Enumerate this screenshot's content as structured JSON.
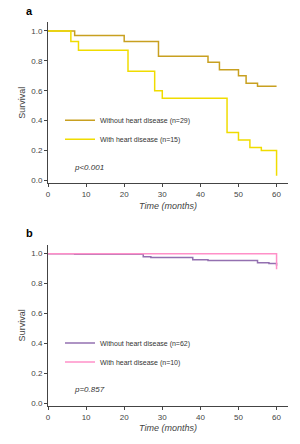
{
  "chart_data": [
    {
      "type": "step",
      "title": "a",
      "series": [
        {
          "name": "Without heart disease (n=29)",
          "color": "#C8A020",
          "x": [
            0,
            7,
            20,
            29,
            42,
            45,
            50,
            52,
            55,
            60
          ],
          "values": [
            1.0,
            0.97,
            0.93,
            0.83,
            0.79,
            0.74,
            0.7,
            0.65,
            0.63,
            0.63
          ]
        },
        {
          "name": "With heart disease (n=15)",
          "color": "#F0DC00",
          "x": [
            0,
            6,
            8,
            21,
            28,
            30,
            47,
            50,
            53,
            56,
            60
          ],
          "values": [
            1.0,
            0.93,
            0.87,
            0.73,
            0.6,
            0.55,
            0.32,
            0.27,
            0.22,
            0.2,
            0.03
          ]
        }
      ],
      "annotations": [
        "p<0.001"
      ],
      "x_label": "Time (months)",
      "y_label": "Survival",
      "xlim": [
        0,
        63
      ],
      "ylim": [
        -0.02,
        1.06
      ],
      "xticks": [
        0,
        10,
        20,
        30,
        40,
        50,
        60
      ],
      "yticks": [
        {
          "value": 0,
          "label": "0.0"
        },
        0.2,
        0.4,
        0.6,
        0.8,
        {
          "value": 1,
          "label": "1.0"
        }
      ],
      "grid": false,
      "legend": "lower left"
    },
    {
      "type": "step",
      "title": "b",
      "series": [
        {
          "name": "Without heart disease (n=62)",
          "color": "#9370B0",
          "x": [
            0,
            7,
            25,
            27,
            38,
            42,
            55,
            58,
            60
          ],
          "values": [
            1.0,
            0.997,
            0.98,
            0.975,
            0.96,
            0.955,
            0.94,
            0.935,
            0.92
          ]
        },
        {
          "name": "With heart disease (n=10)",
          "color": "#FF90C8",
          "x": [
            0,
            60
          ],
          "values": [
            1.0,
            0.895
          ]
        }
      ],
      "annotations": [
        "p=0.857"
      ],
      "x_label": "Time (months)",
      "y_label": "Survival",
      "xlim": [
        0,
        63
      ],
      "ylim": [
        -0.02,
        1.06
      ],
      "xticks": [
        0,
        10,
        20,
        30,
        40,
        50,
        60
      ],
      "yticks": [
        {
          "value": 0,
          "label": "0.0"
        },
        0.2,
        0.4,
        0.6,
        0.8,
        {
          "value": 1,
          "label": "1.0"
        }
      ],
      "grid": false,
      "legend": "lower left"
    }
  ]
}
